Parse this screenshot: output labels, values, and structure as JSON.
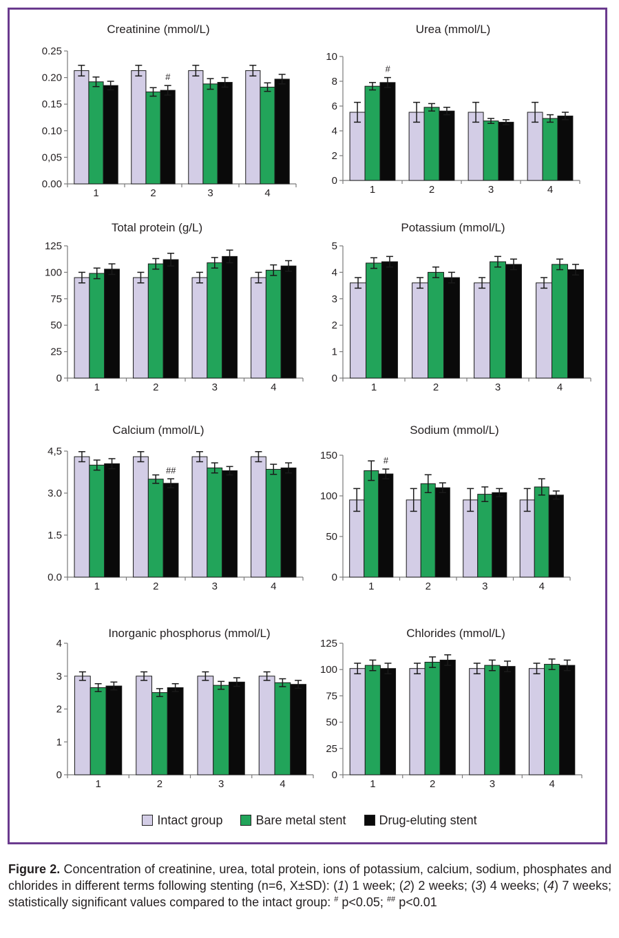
{
  "colors": {
    "frame": "#6a3a8e",
    "intact": "#d3cde6",
    "bare_metal": "#22a45a",
    "drug_eluting": "#0a0a0a"
  },
  "legend": {
    "items": [
      {
        "label": "Intact group",
        "color": "#d3cde6"
      },
      {
        "label": "Bare metal stent",
        "color": "#22a45a"
      },
      {
        "label": "Drug-eluting stent",
        "color": "#0a0a0a"
      }
    ]
  },
  "caption": {
    "figure_label": "Figure 2.",
    "text_1": " Concentration of creatinine, urea, total protein, ions of potassium, calcium, sodium, phosphates and chlorides in different terms following stenting (n=6, X±SD): (",
    "item_1_num": "1",
    "item_1_text": ") 1 week; (",
    "item_2_num": "2",
    "item_2_text": ") 2 weeks; (",
    "item_3_num": "3",
    "item_3_text": ") 4 weeks; (",
    "item_4_num": "4",
    "item_4_text": ") 7 weeks; statistically significant values compared to the intact group: ",
    "sig1_mark": "#",
    "sig1_text": " p<0.05; ",
    "sig2_mark": "##",
    "sig2_text": " p<0.01"
  },
  "chart_data": [
    {
      "type": "bar",
      "title": "Creatinine (mmol/L)",
      "categories": [
        "1",
        "2",
        "3",
        "4"
      ],
      "yticks": [
        "0.00",
        "0,05",
        "0.10",
        "0.15",
        "0.20",
        "0.25"
      ],
      "ylim": [
        0,
        0.25
      ],
      "series": [
        {
          "name": "Intact group",
          "values": [
            0.213,
            0.213,
            0.213,
            0.213
          ],
          "errors": [
            0.01,
            0.01,
            0.01,
            0.01
          ]
        },
        {
          "name": "Bare metal stent",
          "values": [
            0.192,
            0.173,
            0.188,
            0.182
          ],
          "errors": [
            0.009,
            0.008,
            0.01,
            0.008
          ]
        },
        {
          "name": "Drug-eluting stent",
          "values": [
            0.185,
            0.176,
            0.191,
            0.197
          ],
          "errors": [
            0.008,
            0.009,
            0.009,
            0.009
          ]
        }
      ],
      "annotations": [
        {
          "category": 1,
          "series": 2,
          "text": "#"
        }
      ]
    },
    {
      "type": "bar",
      "title": "Urea (mmol/L)",
      "categories": [
        "1",
        "2",
        "3",
        "4"
      ],
      "yticks": [
        "0",
        "2",
        "4",
        "6",
        "8",
        "10"
      ],
      "ylim": [
        0,
        10
      ],
      "series": [
        {
          "name": "Intact group",
          "values": [
            5.5,
            5.5,
            5.5,
            5.5
          ],
          "errors": [
            0.8,
            0.8,
            0.8,
            0.8
          ]
        },
        {
          "name": "Bare metal stent",
          "values": [
            7.6,
            5.9,
            4.8,
            5.0
          ],
          "errors": [
            0.3,
            0.3,
            0.2,
            0.3
          ]
        },
        {
          "name": "Drug-eluting stent",
          "values": [
            7.9,
            5.6,
            4.7,
            5.2
          ],
          "errors": [
            0.4,
            0.3,
            0.2,
            0.3
          ]
        }
      ],
      "annotations": [
        {
          "category": 0,
          "series": 2,
          "text": "#"
        }
      ]
    },
    {
      "type": "bar",
      "title": "Total protein (g/L)",
      "categories": [
        "1",
        "2",
        "3",
        "4"
      ],
      "yticks": [
        "0",
        "25",
        "50",
        "75",
        "100",
        "125"
      ],
      "ylim": [
        0,
        125
      ],
      "series": [
        {
          "name": "Intact group",
          "values": [
            95,
            95,
            95,
            95
          ],
          "errors": [
            5,
            5,
            5,
            5
          ]
        },
        {
          "name": "Bare metal stent",
          "values": [
            99,
            108,
            109,
            102
          ],
          "errors": [
            5,
            5,
            5,
            5
          ]
        },
        {
          "name": "Drug-eluting stent",
          "values": [
            103,
            112,
            115,
            106
          ],
          "errors": [
            5,
            6,
            6,
            5
          ]
        }
      ],
      "annotations": []
    },
    {
      "type": "bar",
      "title": "Potassium (mmol/L)",
      "categories": [
        "1",
        "2",
        "3",
        "4"
      ],
      "yticks": [
        "0",
        "1",
        "2",
        "3",
        "4",
        "5"
      ],
      "ylim": [
        0,
        5
      ],
      "series": [
        {
          "name": "Intact group",
          "values": [
            3.6,
            3.6,
            3.6,
            3.6
          ],
          "errors": [
            0.2,
            0.2,
            0.2,
            0.2
          ]
        },
        {
          "name": "Bare metal stent",
          "values": [
            4.35,
            4.0,
            4.4,
            4.3
          ],
          "errors": [
            0.2,
            0.2,
            0.2,
            0.2
          ]
        },
        {
          "name": "Drug-eluting stent",
          "values": [
            4.4,
            3.8,
            4.3,
            4.1
          ],
          "errors": [
            0.2,
            0.2,
            0.2,
            0.2
          ]
        }
      ],
      "annotations": []
    },
    {
      "type": "bar",
      "title": "Calcium (mmol/L)",
      "categories": [
        "1",
        "2",
        "3",
        "4"
      ],
      "yticks": [
        "0.0",
        "1.5",
        "3.0",
        "4,5"
      ],
      "ylim": [
        0,
        4.5
      ],
      "series": [
        {
          "name": "Intact group",
          "values": [
            4.3,
            4.3,
            4.3,
            4.3
          ],
          "errors": [
            0.18,
            0.18,
            0.18,
            0.18
          ]
        },
        {
          "name": "Bare metal stent",
          "values": [
            4.0,
            3.5,
            3.9,
            3.85
          ],
          "errors": [
            0.18,
            0.15,
            0.18,
            0.18
          ]
        },
        {
          "name": "Drug-eluting stent",
          "values": [
            4.05,
            3.35,
            3.8,
            3.9
          ],
          "errors": [
            0.18,
            0.16,
            0.15,
            0.18
          ]
        }
      ],
      "annotations": [
        {
          "category": 1,
          "series": 2,
          "text": "##"
        }
      ]
    },
    {
      "type": "bar",
      "title": "Sodium (mmol/L)",
      "categories": [
        "1",
        "2",
        "3",
        "4"
      ],
      "yticks": [
        "0",
        "50",
        "100",
        "150"
      ],
      "ylim": [
        0,
        150
      ],
      "series": [
        {
          "name": "Intact group",
          "values": [
            95,
            95,
            95,
            95
          ],
          "errors": [
            14,
            14,
            14,
            14
          ]
        },
        {
          "name": "Bare metal stent",
          "values": [
            131,
            115,
            102,
            111
          ],
          "errors": [
            12,
            11,
            9,
            10
          ]
        },
        {
          "name": "Drug-eluting stent",
          "values": [
            127,
            110,
            104,
            101
          ],
          "errors": [
            6,
            6,
            5,
            5
          ]
        }
      ],
      "annotations": [
        {
          "category": 0,
          "series": 2,
          "text": "#"
        }
      ]
    },
    {
      "type": "bar",
      "title": "Inorganic phosphorus (mmol/L)",
      "categories": [
        "1",
        "2",
        "3",
        "4"
      ],
      "yticks": [
        "0",
        "1",
        "2",
        "3",
        "4"
      ],
      "ylim": [
        0,
        4
      ],
      "series": [
        {
          "name": "Intact group",
          "values": [
            3.0,
            3.0,
            3.0,
            3.0
          ],
          "errors": [
            0.13,
            0.13,
            0.13,
            0.13
          ]
        },
        {
          "name": "Bare metal stent",
          "values": [
            2.65,
            2.5,
            2.72,
            2.8
          ],
          "errors": [
            0.12,
            0.12,
            0.12,
            0.12
          ]
        },
        {
          "name": "Drug-eluting stent",
          "values": [
            2.7,
            2.65,
            2.82,
            2.75
          ],
          "errors": [
            0.12,
            0.12,
            0.13,
            0.12
          ]
        }
      ],
      "annotations": []
    },
    {
      "type": "bar",
      "title": "Chlorides (mmol/L)",
      "categories": [
        "1",
        "2",
        "3",
        "4"
      ],
      "yticks": [
        "0",
        "25",
        "50",
        "75",
        "100",
        "125"
      ],
      "ylim": [
        0,
        125
      ],
      "series": [
        {
          "name": "Intact group",
          "values": [
            101,
            101,
            101,
            101
          ],
          "errors": [
            5,
            5,
            5,
            5
          ]
        },
        {
          "name": "Bare metal stent",
          "values": [
            104,
            107,
            104,
            105
          ],
          "errors": [
            5,
            5,
            5,
            5
          ]
        },
        {
          "name": "Drug-eluting stent",
          "values": [
            101,
            109,
            103,
            104
          ],
          "errors": [
            5,
            5,
            5,
            5
          ]
        }
      ],
      "annotations": []
    }
  ]
}
